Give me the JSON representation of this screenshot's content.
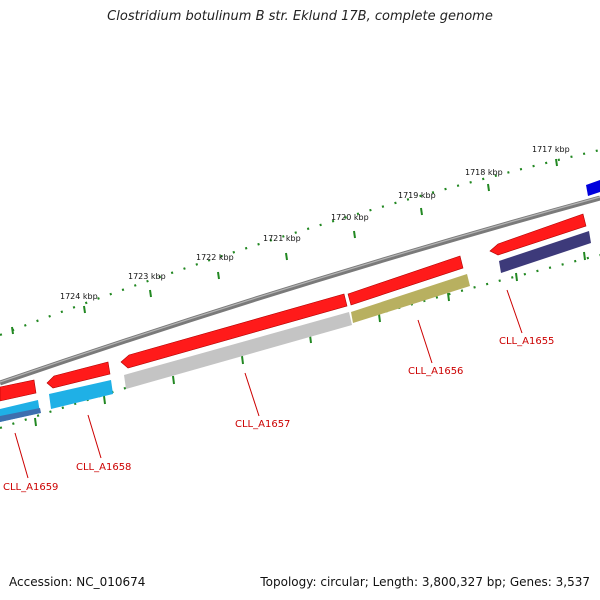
{
  "title": "Clostridium botulinum B str. Eklund 17B, complete genome",
  "kbp_labels": [
    "1717 kbp",
    "1718 kbp",
    "1719 kbp",
    "1720 kbp",
    "1721 kbp",
    "1722 kbp",
    "1723 kbp",
    "1724 kbp"
  ],
  "genes": [
    "CLL_A1655",
    "CLL_A1656",
    "CLL_A1657",
    "CLL_A1658",
    "CLL_A1659"
  ],
  "footer": {
    "accession": "Accession: NC_010674",
    "summary": "Topology: circular; Length: 3,800,327 bp; Genes: 3,537"
  },
  "colors": {
    "backbone": "#7a7a7a",
    "strand_red": "#ff1a1a",
    "cds_navy": "#3d3a7a",
    "cds_olive": "#b8b060",
    "cds_gray": "#c4c4c4",
    "cds_cyan": "#1fb0e6",
    "cds_blue": "#0000dd",
    "ticks": "#228822",
    "label": "#cc0000"
  }
}
